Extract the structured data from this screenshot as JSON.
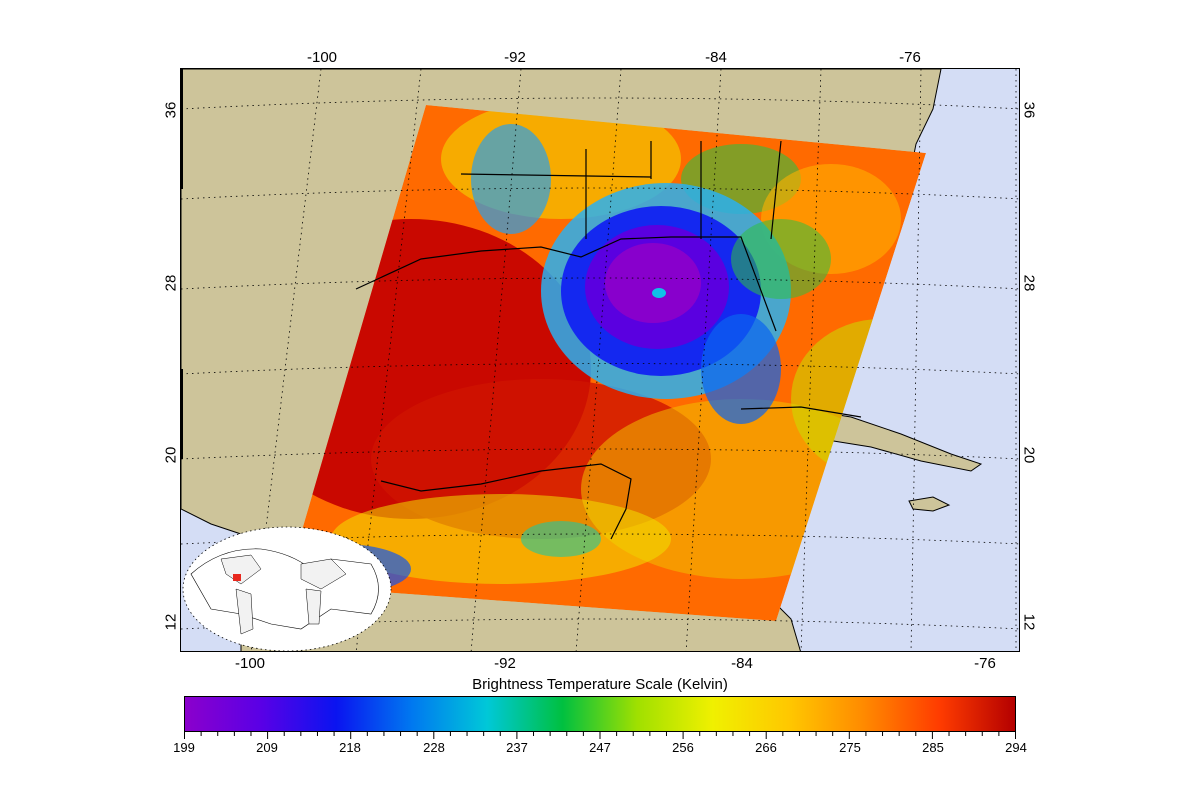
{
  "map": {
    "top_lon_labels": [
      "-100",
      "-92",
      "-84",
      "-76"
    ],
    "bottom_lon_labels": [
      "-100",
      "-92",
      "-84",
      "-76"
    ],
    "left_lat_labels": [
      "36",
      "28",
      "20",
      "12"
    ],
    "right_lat_labels": [
      "36",
      "28",
      "20",
      "12"
    ],
    "colors": {
      "ocean": "#d4ddf5",
      "land": "#cdc49a",
      "border": "#000000",
      "graticule": "#000000"
    },
    "inset": {
      "marker_color": "#e8281e"
    }
  },
  "colorbar": {
    "title": "Brightness Temperature Scale (Kelvin)",
    "labels": [
      "199",
      "209",
      "218",
      "228",
      "237",
      "247",
      "256",
      "266",
      "275",
      "285",
      "294"
    ],
    "min": 199,
    "max": 294,
    "gradient_stops": [
      "#8b00cc",
      "#5a00e6",
      "#0a14f0",
      "#0078f0",
      "#00c8d8",
      "#00c040",
      "#a0e000",
      "#f0f000",
      "#ffc800",
      "#ff8a00",
      "#ff3c00",
      "#b40000"
    ]
  }
}
